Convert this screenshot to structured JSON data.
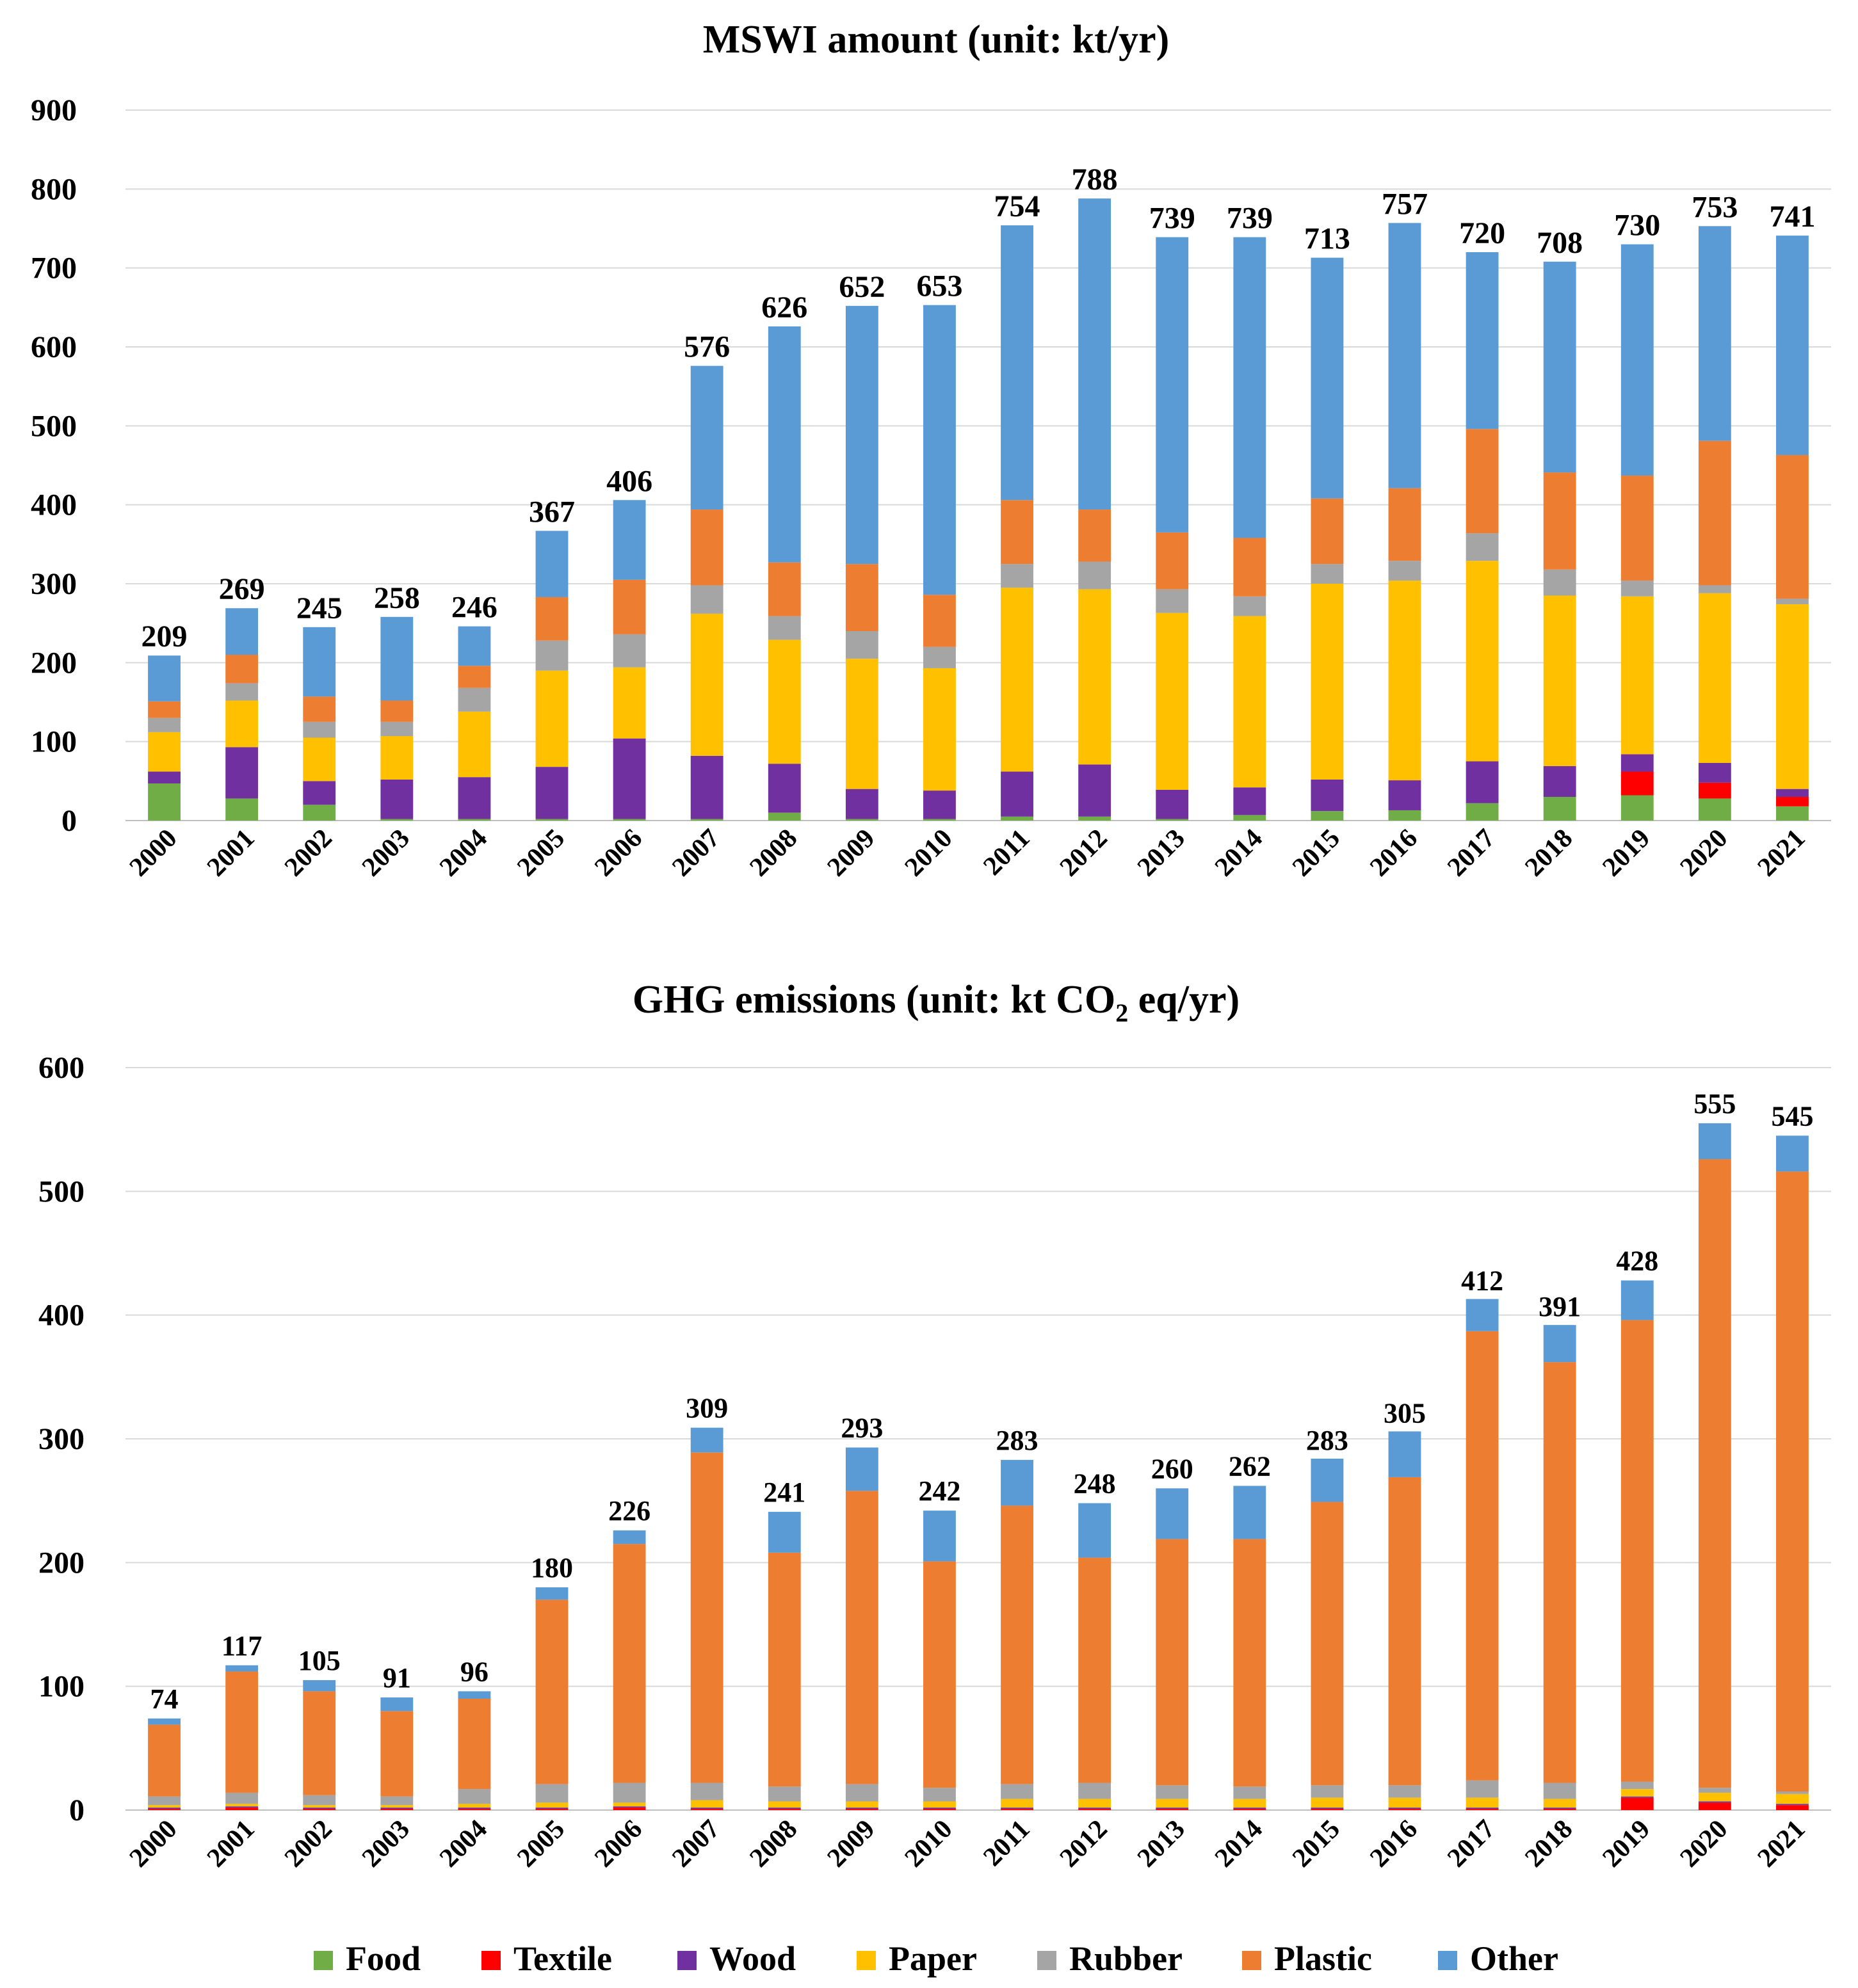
{
  "categories": [
    "Food",
    "Textile",
    "Wood",
    "Paper",
    "Rubber",
    "Plastic",
    "Other"
  ],
  "colors": {
    "Food": "#70ad47",
    "Textile": "#ff0000",
    "Wood": "#7030a0",
    "Paper": "#ffc000",
    "Rubber": "#a5a5a5",
    "Plastic": "#ed7d31",
    "Other": "#5b9bd5"
  },
  "chart_data": [
    {
      "type": "bar",
      "stacked": true,
      "title": "MSWI amount (unit: kt/yr)",
      "xlabel": "",
      "ylabel": "",
      "ylim": [
        0,
        900
      ],
      "yticks": [
        0,
        100,
        200,
        300,
        400,
        500,
        600,
        700,
        800,
        900
      ],
      "grid": true,
      "x": [
        "2000",
        "2001",
        "2002",
        "2003",
        "2004",
        "2005",
        "2006",
        "2007",
        "2008",
        "2009",
        "2010",
        "2011",
        "2012",
        "2013",
        "2014",
        "2015",
        "2016",
        "2017",
        "2018",
        "2019",
        "2020",
        "2021"
      ],
      "totals": [
        209,
        269,
        245,
        258,
        246,
        367,
        406,
        576,
        626,
        652,
        653,
        754,
        788,
        739,
        739,
        713,
        757,
        720,
        708,
        730,
        753,
        741
      ],
      "series": [
        {
          "name": "Food",
          "values": [
            47,
            28,
            20,
            2,
            2,
            2,
            2,
            2,
            10,
            2,
            2,
            5,
            5,
            2,
            7,
            12,
            13,
            22,
            30,
            32,
            28,
            18
          ]
        },
        {
          "name": "Textile",
          "values": [
            0,
            0,
            0,
            0,
            0,
            0,
            0,
            0,
            0,
            0,
            0,
            0,
            0,
            0,
            0,
            0,
            0,
            0,
            0,
            30,
            20,
            12
          ]
        },
        {
          "name": "Wood",
          "values": [
            15,
            65,
            30,
            50,
            53,
            66,
            102,
            80,
            62,
            38,
            36,
            57,
            66,
            37,
            35,
            40,
            38,
            53,
            39,
            22,
            25,
            10
          ]
        },
        {
          "name": "Paper",
          "values": [
            50,
            59,
            55,
            55,
            83,
            122,
            90,
            180,
            157,
            165,
            155,
            233,
            222,
            224,
            217,
            248,
            253,
            254,
            216,
            200,
            215,
            234
          ]
        },
        {
          "name": "Rubber",
          "values": [
            18,
            22,
            20,
            18,
            30,
            38,
            42,
            36,
            30,
            35,
            27,
            30,
            35,
            30,
            25,
            25,
            25,
            35,
            33,
            20,
            10,
            7
          ]
        },
        {
          "name": "Plastic",
          "values": [
            21,
            36,
            32,
            27,
            28,
            55,
            69,
            96,
            68,
            85,
            66,
            81,
            66,
            72,
            74,
            83,
            92,
            132,
            123,
            133,
            183,
            182
          ]
        },
        {
          "name": "Other",
          "values": [
            58,
            59,
            88,
            106,
            50,
            84,
            101,
            182,
            299,
            327,
            367,
            348,
            394,
            374,
            381,
            305,
            336,
            224,
            267,
            293,
            272,
            278
          ]
        }
      ]
    },
    {
      "type": "bar",
      "stacked": true,
      "title_prefix": "GHG emissions (unit: kt CO",
      "title_subscript": "2",
      "title_suffix": " eq/yr)",
      "xlabel": "",
      "ylabel": "",
      "ylim": [
        0,
        600
      ],
      "yticks": [
        0,
        100,
        200,
        300,
        400,
        500,
        600
      ],
      "grid": true,
      "x": [
        "2000",
        "2001",
        "2002",
        "2003",
        "2004",
        "2005",
        "2006",
        "2007",
        "2008",
        "2009",
        "2010",
        "2011",
        "2012",
        "2013",
        "2014",
        "2015",
        "2016",
        "2017",
        "2018",
        "2019",
        "2020",
        "2021"
      ],
      "totals": [
        74,
        117,
        105,
        91,
        96,
        180,
        226,
        309,
        241,
        293,
        242,
        283,
        248,
        260,
        262,
        283,
        305,
        412,
        391,
        428,
        555,
        545
      ],
      "series": [
        {
          "name": "Food",
          "values": [
            0,
            0,
            0,
            0,
            0,
            0,
            0,
            0,
            0,
            0,
            0,
            0,
            0,
            0,
            0,
            0,
            0,
            0,
            0,
            0,
            0,
            0
          ]
        },
        {
          "name": "Textile",
          "values": [
            1,
            2,
            1,
            1,
            1,
            1,
            2,
            1,
            1,
            1,
            1,
            1,
            1,
            1,
            1,
            1,
            1,
            1,
            1,
            10,
            6,
            4
          ]
        },
        {
          "name": "Wood",
          "values": [
            1,
            1,
            1,
            1,
            1,
            1,
            1,
            1,
            1,
            1,
            1,
            1,
            1,
            1,
            1,
            1,
            1,
            1,
            1,
            1,
            1,
            1
          ]
        },
        {
          "name": "Paper",
          "values": [
            2,
            2,
            2,
            2,
            3,
            4,
            3,
            6,
            5,
            5,
            5,
            7,
            7,
            7,
            7,
            8,
            8,
            8,
            7,
            6,
            7,
            8
          ]
        },
        {
          "name": "Rubber",
          "values": [
            7,
            9,
            8,
            7,
            12,
            15,
            16,
            14,
            12,
            14,
            11,
            12,
            13,
            11,
            10,
            10,
            10,
            14,
            13,
            6,
            4,
            2
          ]
        },
        {
          "name": "Plastic",
          "values": [
            58,
            98,
            84,
            69,
            73,
            149,
            193,
            267,
            189,
            237,
            183,
            225,
            182,
            199,
            200,
            229,
            249,
            363,
            340,
            373,
            508,
            501
          ]
        },
        {
          "name": "Other",
          "values": [
            5,
            5,
            9,
            11,
            6,
            10,
            11,
            20,
            33,
            35,
            41,
            37,
            44,
            41,
            43,
            35,
            37,
            26,
            30,
            32,
            29,
            29
          ]
        }
      ]
    }
  ]
}
